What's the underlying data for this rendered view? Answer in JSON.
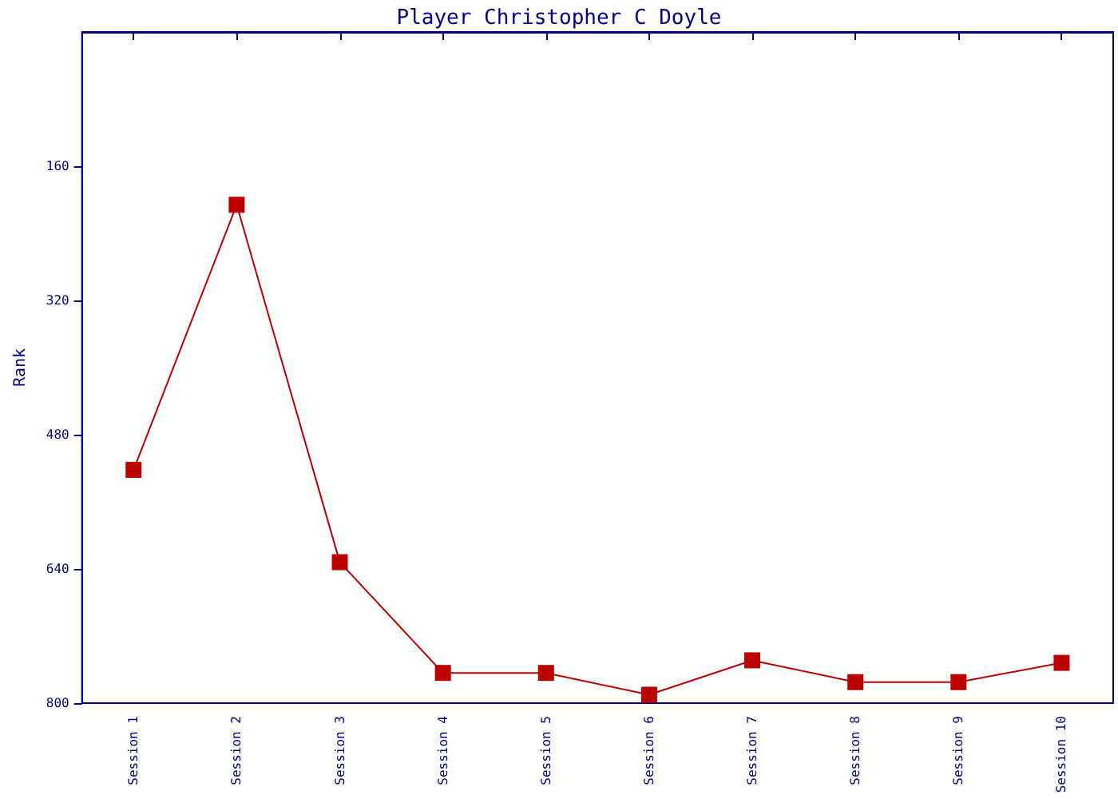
{
  "chart_data": {
    "type": "line",
    "title": "Player Christopher C Doyle",
    "ylabel": "Rank",
    "categories": [
      "Session 1",
      "Session 2",
      "Session 3",
      "Session 4",
      "Session 5",
      "Session 6",
      "Session 7",
      "Session 8",
      "Session 9",
      "Session 10"
    ],
    "series": [
      {
        "color": "#bb0000",
        "values": [
          522,
          206,
          632,
          764,
          764,
          790,
          749,
          775,
          775,
          752
        ]
      }
    ],
    "ylim": [
      800,
      0
    ],
    "yticks": [
      160,
      320,
      480,
      640,
      800
    ],
    "grid": false,
    "marker": "square",
    "line_style": "solid"
  }
}
